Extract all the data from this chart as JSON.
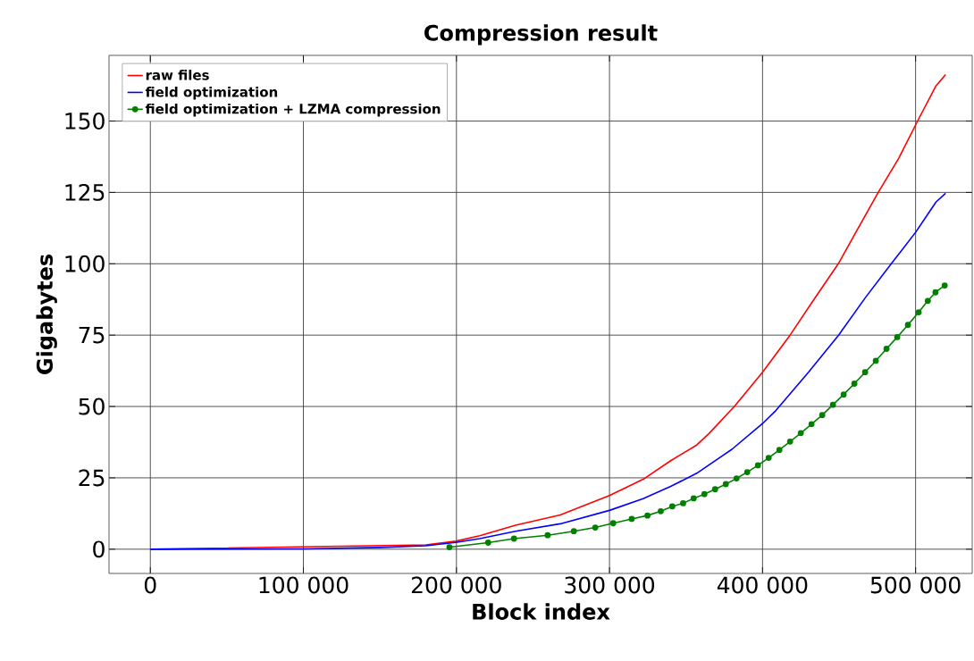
{
  "chart_data": {
    "type": "line",
    "title": "Compression result",
    "xlabel": "Block index",
    "ylabel": "Gigabytes",
    "xlim": [
      -27000,
      537000
    ],
    "ylim": [
      -8.5,
      173
    ],
    "xticks": [
      0,
      {
        "value": 100000,
        "label": "100 000"
      },
      {
        "value": 200000,
        "label": "200 000"
      },
      {
        "value": 300000,
        "label": "300 000"
      },
      {
        "value": 400000,
        "label": "400 000"
      },
      {
        "value": 500000,
        "label": "500 000"
      }
    ],
    "yticks": [
      0,
      25,
      50,
      75,
      100,
      125,
      150
    ],
    "grid": true,
    "legend": "top left",
    "line_style": "solid",
    "series": [
      {
        "name": "raw files",
        "color": "#ff0000",
        "marker": "none",
        "x": [
          0,
          180000,
          199600,
          215200,
          238600,
          267800,
          300000,
          322000,
          340000,
          357000,
          365000,
          381600,
          400000,
          418000,
          433000,
          449500,
          462000,
          475600,
          489000,
          501300,
          513300,
          519600
        ],
        "values": [
          0,
          1.5,
          2.8,
          4.7,
          8.4,
          12,
          18.8,
          24.5,
          31,
          36.5,
          40.5,
          50,
          62,
          75,
          87,
          100,
          112,
          125,
          137,
          150,
          162.3,
          166.3
        ]
      },
      {
        "name": "field optimization",
        "color": "#0000ff",
        "marker": "none",
        "x": [
          0,
          100000,
          150000,
          180000,
          199600,
          215200,
          238600,
          267800,
          300000,
          322000,
          340000,
          357000,
          380000,
          400000,
          408600,
          430000,
          449700,
          467000,
          484100,
          500000,
          513300,
          519600
        ],
        "values": [
          0,
          0.1,
          0.6,
          1.2,
          2.4,
          3.7,
          6.3,
          8.9,
          13.6,
          17.7,
          22,
          26.6,
          35,
          44,
          48.5,
          62,
          75,
          88,
          100,
          111,
          121.6,
          124.7
        ]
      },
      {
        "name": "field optimization + LZMA compression",
        "color": "#008000",
        "marker": "circle",
        "x": [
          195400,
          220700,
          237600,
          259600,
          276700,
          290700,
          302400,
          314500,
          324800,
          333500,
          341000,
          348100,
          355000,
          362000,
          369000,
          376000,
          383000,
          390000,
          397000,
          404000,
          411000,
          418000,
          425000,
          432000,
          439000,
          446000,
          453000,
          460000,
          467000,
          474000,
          481000,
          488000,
          495000,
          502000,
          508000,
          513000,
          519000
        ],
        "values": [
          0.7,
          2.3,
          3.7,
          4.9,
          6.3,
          7.6,
          9.1,
          10.6,
          11.8,
          13.3,
          15.0,
          16.1,
          17.8,
          19.3,
          21.0,
          22.8,
          24.8,
          27.0,
          29.4,
          32.0,
          34.8,
          37.7,
          40.7,
          43.8,
          47.0,
          50.6,
          54.2,
          58.0,
          62.0,
          66.0,
          70.2,
          74.3,
          78.6,
          83.0,
          87.0,
          90.0,
          92.4
        ]
      }
    ]
  }
}
